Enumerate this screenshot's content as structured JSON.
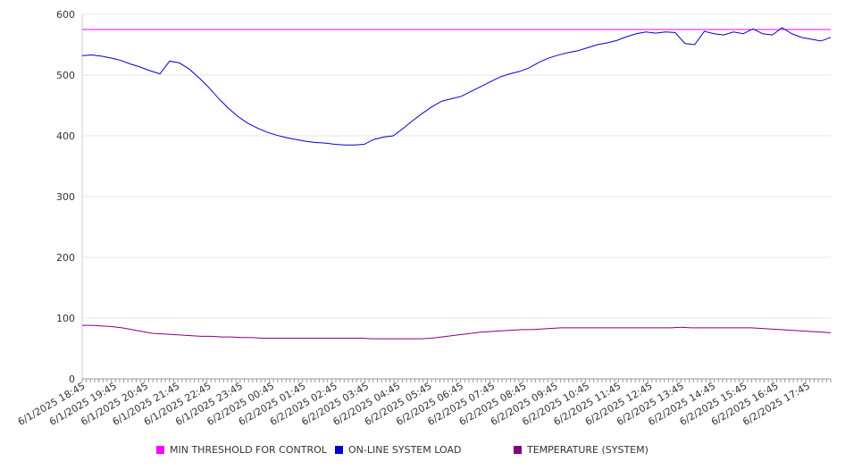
{
  "chart_data": {
    "type": "line",
    "title": "",
    "xlabel": "",
    "ylabel": "",
    "ylim": [
      0,
      600
    ],
    "yticks": [
      0,
      100,
      200,
      300,
      400,
      500,
      600
    ],
    "grid": true,
    "legend_position": "bottom",
    "x_tick_labels": [
      "6/1/2025 18:45",
      "6/1/2025 19:45",
      "6/1/2025 20:45",
      "6/1/2025 21:45",
      "6/1/2025 22:45",
      "6/1/2025 23:45",
      "6/2/2025 00:45",
      "6/2/2025 01:45",
      "6/2/2025 02:45",
      "6/2/2025 03:45",
      "6/2/2025 04:45",
      "6/2/2025 05:45",
      "6/2/2025 06:45",
      "6/2/2025 07:45",
      "6/2/2025 08:45",
      "6/2/2025 09:45",
      "6/2/2025 10:45",
      "6/2/2025 11:45",
      "6/2/2025 12:45",
      "6/2/2025 13:45",
      "6/2/2025 14:45",
      "6/2/2025 15:45",
      "6/2/2025 16:45",
      "6/2/2025 17:45"
    ],
    "x_hours": [
      0,
      0.25,
      0.5,
      0.75,
      1,
      1.25,
      1.5,
      1.75,
      2,
      2.25,
      2.5,
      2.75,
      3,
      3.25,
      3.5,
      3.75,
      4,
      4.25,
      4.5,
      4.75,
      5,
      5.25,
      5.5,
      5.75,
      6,
      6.25,
      6.5,
      6.75,
      7,
      7.25,
      7.5,
      7.75,
      8,
      8.25,
      8.5,
      8.75,
      9,
      9.25,
      9.5,
      9.75,
      10,
      10.25,
      10.5,
      10.75,
      11,
      11.25,
      11.5,
      11.75,
      12,
      12.25,
      12.5,
      12.75,
      13,
      13.25,
      13.5,
      13.75,
      14,
      14.25,
      14.5,
      14.75,
      15,
      15.25,
      15.5,
      15.75,
      16,
      16.25,
      16.5,
      16.75,
      17,
      17.25,
      17.5,
      17.75,
      18,
      18.25,
      18.5,
      18.75,
      19,
      19.25,
      19.5,
      19.75,
      20,
      20.25,
      20.5,
      20.75,
      21,
      21.25,
      21.5,
      21.75,
      22,
      22.25,
      22.5,
      22.75,
      23,
      23.25,
      23.5,
      23.75
    ],
    "series": [
      {
        "name": "MIN THRESHOLD FOR CONTROL",
        "color": "#ff00ff",
        "values": [
          575,
          575,
          575,
          575,
          575,
          575,
          575,
          575,
          575,
          575,
          575,
          575,
          575,
          575,
          575,
          575,
          575,
          575,
          575,
          575,
          575,
          575,
          575,
          575,
          575,
          575,
          575,
          575,
          575,
          575,
          575,
          575,
          575,
          575,
          575,
          575,
          575,
          575,
          575,
          575,
          575,
          575,
          575,
          575,
          575,
          575,
          575,
          575,
          575,
          575,
          575,
          575,
          575,
          575,
          575,
          575,
          575,
          575,
          575,
          575,
          575,
          575,
          575,
          575,
          575,
          575,
          575,
          575,
          575,
          575,
          575,
          575,
          575,
          575,
          575,
          575,
          575,
          575,
          575,
          575,
          575,
          575,
          575,
          575,
          575,
          575,
          575,
          575,
          575,
          575,
          575,
          575,
          575,
          575,
          575,
          575
        ]
      },
      {
        "name": "ON-LINE SYSTEM LOAD",
        "color": "#0000cc",
        "values": [
          532,
          533,
          531,
          528,
          524,
          518,
          513,
          507,
          502,
          523,
          520,
          510,
          496,
          480,
          462,
          446,
          432,
          421,
          413,
          406,
          401,
          397,
          394,
          391,
          389,
          388,
          386,
          385,
          385,
          386,
          394,
          398,
          400,
          412,
          425,
          437,
          448,
          457,
          461,
          465,
          473,
          481,
          489,
          497,
          502,
          506,
          512,
          521,
          528,
          533,
          537,
          540,
          545,
          550,
          553,
          557,
          563,
          568,
          571,
          569,
          571,
          570,
          552,
          550,
          572,
          568,
          566,
          571,
          568,
          576,
          568,
          566,
          578,
          568,
          562,
          559,
          556,
          562
        ]
      },
      {
        "name": "TEMPERATURE (SYSTEM)",
        "color": "#800080",
        "values": [
          88,
          88,
          87,
          86,
          84,
          81,
          78,
          75,
          74,
          73,
          72,
          71,
          70,
          70,
          69,
          69,
          68,
          68,
          67,
          67,
          67,
          67,
          67,
          67,
          67,
          67,
          67,
          67,
          67,
          66,
          66,
          66,
          66,
          66,
          66,
          67,
          69,
          71,
          73,
          75,
          77,
          78,
          79,
          80,
          81,
          81,
          82,
          83,
          84,
          84,
          84,
          84,
          84,
          84,
          84,
          84,
          84,
          84,
          84,
          84,
          85,
          84,
          84,
          84,
          84,
          84,
          84,
          84,
          83,
          82,
          81,
          80,
          79,
          78,
          77,
          76
        ]
      }
    ]
  }
}
